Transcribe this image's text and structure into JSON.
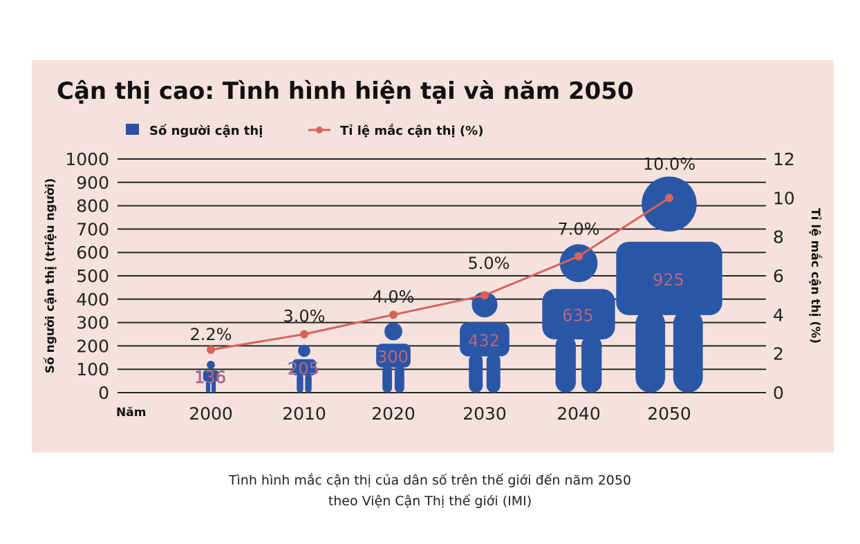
{
  "chart_data": {
    "type": "bar",
    "title": "Cận thị cao: Tình hình hiện tại và năm 2050",
    "legend": [
      {
        "label": "Số người cận thị",
        "marker": "square",
        "color": "#2f4ea6"
      },
      {
        "label": "Tỉ lệ mắc cận thị (%)",
        "marker": "line-dot",
        "color": "#d9635a"
      }
    ],
    "xlabel": "Năm",
    "ylabel_left": "Số người cận thị (triệu người)",
    "ylabel_right": "Tỉ lệ mắc cận thị (%)",
    "categories": [
      "2000",
      "2010",
      "2020",
      "2030",
      "2040",
      "2050"
    ],
    "y_left_ticks": [
      "0",
      "100",
      "200",
      "300",
      "400",
      "500",
      "600",
      "700",
      "800",
      "900",
      "1000"
    ],
    "y_left_range": [
      0,
      1000
    ],
    "y_right_ticks": [
      "0",
      "2",
      "4",
      "6",
      "8",
      "10",
      "12"
    ],
    "y_right_range": [
      0,
      12
    ],
    "series": [
      {
        "name": "Số người cận thị",
        "chart": "pictogram-bar",
        "values": [
          136,
          205,
          300,
          432,
          635,
          925
        ],
        "labels": [
          "136",
          "205",
          "300",
          "432",
          "635",
          "925"
        ],
        "color": "#2a56a8",
        "label_color": "#e06a6a"
      },
      {
        "name": "Tỉ lệ mắc cận thị (%)",
        "chart": "line",
        "axis": "right",
        "values": [
          2.2,
          3.0,
          4.0,
          5.0,
          7.0,
          10.0
        ],
        "labels": [
          "2.2%",
          "3.0%",
          "4.0%",
          "5.0%",
          "7.0%",
          "10.0%"
        ],
        "color": "#d9635a"
      }
    ],
    "grid": true
  },
  "caption": {
    "line1": "Tình hình mắc cận thị của dân số trên thế giới đến năm 2050",
    "line2": "theo Viện Cận Thị thế giới (IMI)"
  }
}
